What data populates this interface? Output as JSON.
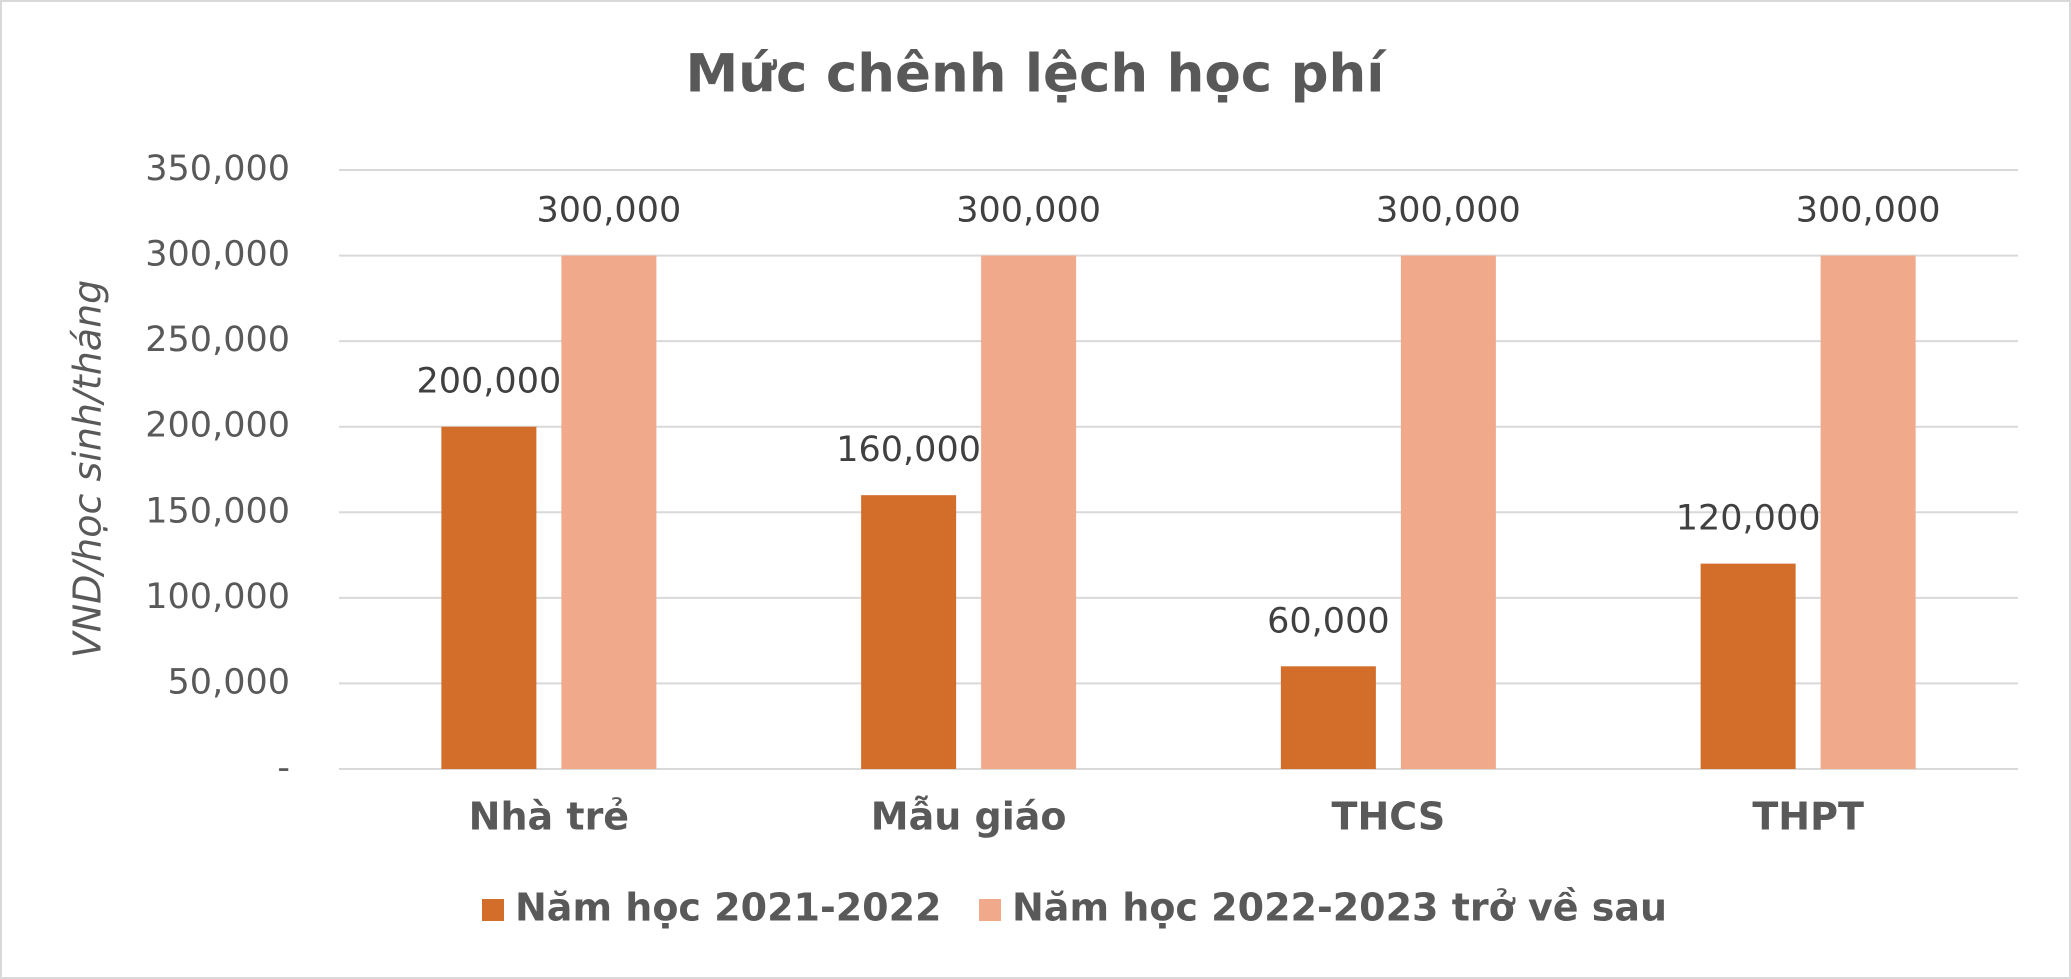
{
  "chart_data": {
    "type": "bar",
    "title": "Mức chênh lệch học phí",
    "y_label": "VND/học sinh/tháng",
    "categories": [
      "Nhà trẻ",
      "Mẫu giáo",
      "THCS",
      "THPT"
    ],
    "series": [
      {
        "name": "Năm học 2021-2022",
        "color": "#d26d2a",
        "values": [
          200000,
          160000,
          60000,
          120000
        ],
        "value_labels": [
          "200,000",
          "160,000",
          "60,000",
          "120,000"
        ]
      },
      {
        "name": "Năm học 2022-2023 trở về sau",
        "color": "#f1a98b",
        "values": [
          300000,
          300000,
          300000,
          300000
        ],
        "value_labels": [
          "300,000",
          "300,000",
          "300,000",
          "300,000"
        ]
      }
    ],
    "ylim": [
      0,
      350000
    ],
    "yticks": [
      {
        "value": 0,
        "label": "-"
      },
      {
        "value": 50000,
        "label": "50,000"
      },
      {
        "value": 100000,
        "label": "100,000"
      },
      {
        "value": 150000,
        "label": "150,000"
      },
      {
        "value": 200000,
        "label": "200,000"
      },
      {
        "value": 250000,
        "label": "250,000"
      },
      {
        "value": 300000,
        "label": "300,000"
      },
      {
        "value": 350000,
        "label": "350,000"
      }
    ],
    "grid": true,
    "legend": "bottom"
  }
}
